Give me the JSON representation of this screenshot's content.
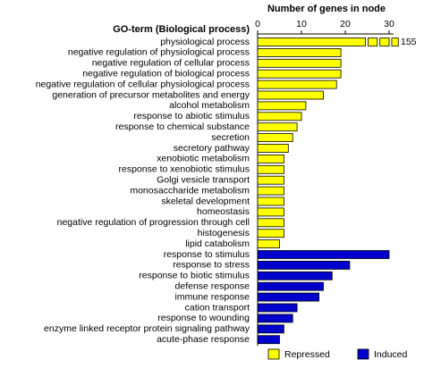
{
  "chart_data": {
    "type": "barh",
    "title": "GO-term (Biological process)",
    "xlabel": "Number of genes in node",
    "categories": [
      "physiological process",
      "negative regulation of physiological process",
      "negative regulation of cellular process",
      "negative regulation of biological process",
      "negative regulation of cellular physiological process",
      "generation of precursor metabolites and energy",
      "alcohol metabolism",
      "response to abiotic stimulus",
      "response to chemical substance",
      "secretion",
      "secretory pathway",
      "xenobiotic metabolism",
      "response to xenobiotic stimulus",
      "Golgi vesicle transport",
      "monosaccharide metabolism",
      "skeletal development",
      "homeostasis",
      "negative regulation of progression through cell",
      "histogenesis",
      "lipid catabolism",
      "response to stimulus",
      "response to stress",
      "response to biotic stimulus",
      "defense response",
      "immune response",
      "cation transport",
      "response to wounding",
      "enzyme linked receptor protein signaling pathway",
      "acute-phase response"
    ],
    "series": [
      {
        "name": "Repressed",
        "color": "#ffff00",
        "values": [
          155,
          19,
          19,
          19,
          18,
          15,
          11,
          10,
          9,
          8,
          7,
          6,
          6,
          6,
          6,
          6,
          6,
          6,
          6,
          5,
          null,
          null,
          null,
          null,
          null,
          null,
          null,
          null,
          null
        ],
        "value_labels": [
          "155",
          null,
          null,
          null,
          null,
          null,
          null,
          null,
          null,
          null,
          null,
          null,
          null,
          null,
          null,
          null,
          null,
          null,
          null,
          null,
          null,
          null,
          null,
          null,
          null,
          null,
          null,
          null,
          null
        ]
      },
      {
        "name": "Induced",
        "color": "#0000cc",
        "values": [
          null,
          null,
          null,
          null,
          null,
          null,
          null,
          null,
          null,
          null,
          null,
          null,
          null,
          null,
          null,
          null,
          null,
          null,
          null,
          null,
          30,
          21,
          17,
          15,
          14,
          9,
          8,
          6,
          5
        ]
      }
    ],
    "xlim": [
      0,
      30
    ],
    "xticks": [
      0,
      10,
      20,
      30
    ],
    "legend": "bottom"
  }
}
